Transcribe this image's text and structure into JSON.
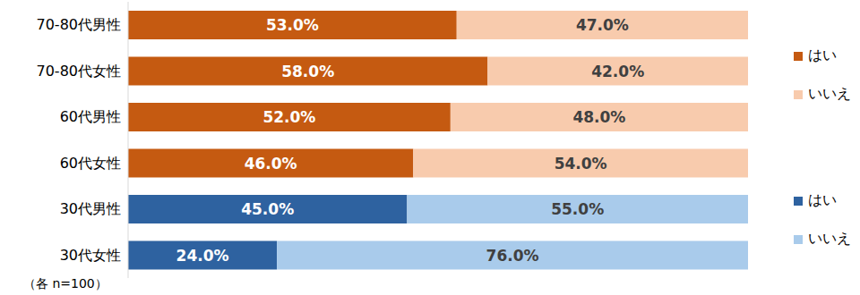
{
  "chart_data": {
    "type": "bar",
    "orientation": "horizontal",
    "stacked": true,
    "data_labels": true,
    "tick_labels": "y",
    "categories": [
      "70-80代男性",
      "70-80代女性",
      "60代男性",
      "60代女性",
      "30代男性",
      "30代女性"
    ],
    "xlim": [
      0,
      100
    ],
    "series": [
      {
        "name": "はい",
        "values": [
          53,
          58,
          52,
          46,
          45,
          24
        ],
        "value_labels": [
          "53.0%",
          "58.0%",
          "52.0%",
          "46.0%",
          "45.0%",
          "24.0%"
        ],
        "colors": [
          "#c55a11",
          "#c55a11",
          "#c55a11",
          "#c55a11",
          "#2e62a0",
          "#2e62a0"
        ]
      },
      {
        "name": "いいえ",
        "values": [
          47,
          42,
          48,
          54,
          55,
          76
        ],
        "value_labels": [
          "47.0%",
          "42.0%",
          "48.0%",
          "54.0%",
          "55.0%",
          "76.0%"
        ],
        "colors": [
          "#f8cbad",
          "#f8cbad",
          "#f8cbad",
          "#f8cbad",
          "#a9cbeb",
          "#a9cbeb"
        ]
      }
    ],
    "legend": "right",
    "annotation": "（各 n=100）"
  }
}
